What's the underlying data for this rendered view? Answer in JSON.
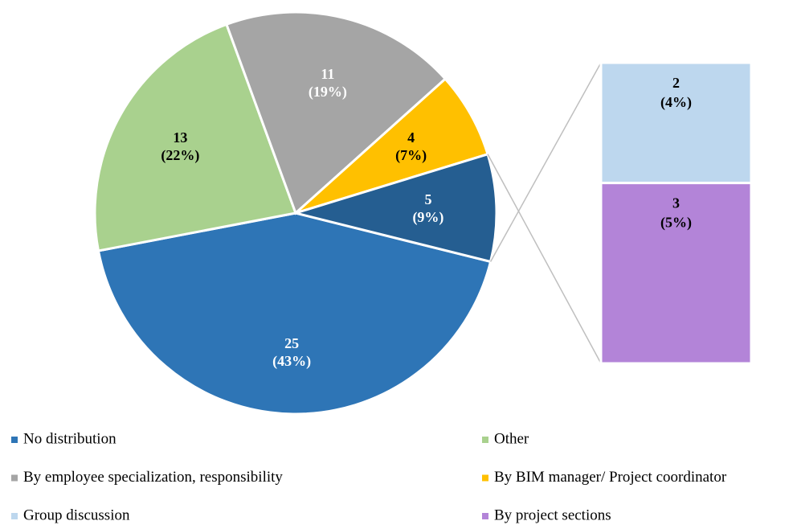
{
  "chart_data": {
    "type": "pie_of_bar",
    "pie": {
      "categories": [
        "No distribution",
        "Other",
        "By employee specialization, responsibility",
        "By BIM manager/ Project coordinator",
        null
      ],
      "values": [
        25,
        13,
        11,
        4,
        5
      ],
      "percents": [
        43,
        22,
        19,
        7,
        9
      ],
      "percent_labels": [
        "(43%)",
        "(22%)",
        "(19%)",
        "(7%)",
        "(9%)"
      ],
      "colors": [
        "#2e75b6",
        "#a9d18e",
        "#a5a5a5",
        "#ffc000",
        "#255e91"
      ],
      "label_colors": [
        "#ffffff",
        "#000000",
        "#ffffff",
        "#000000",
        "#ffffff"
      ]
    },
    "bar": {
      "categories": [
        "Group discussion",
        "By project sections"
      ],
      "values": [
        2,
        3
      ],
      "percents": [
        4,
        5
      ],
      "percent_labels": [
        "(4%)",
        "(5%)"
      ],
      "colors": [
        "#bdd7ee",
        "#b384d8"
      ],
      "label_colors": [
        "#000000",
        "#000000"
      ]
    }
  }
}
